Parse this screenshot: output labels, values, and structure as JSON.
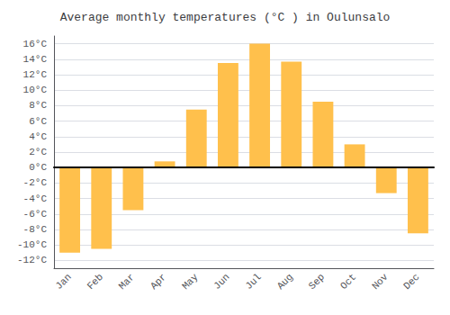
{
  "chart_data": {
    "type": "bar",
    "title": "Average monthly temperatures (°C ) in Oulunsalo",
    "categories": [
      "Jan",
      "Feb",
      "Mar",
      "Apr",
      "May",
      "Jun",
      "Jul",
      "Aug",
      "Sep",
      "Oct",
      "Nov",
      "Dec"
    ],
    "values": [
      -11,
      -10.5,
      -5.5,
      0.8,
      7.5,
      13.5,
      16.0,
      13.7,
      8.5,
      3.0,
      -3.3,
      -8.5
    ],
    "color": "#FFC04C",
    "ylim": [
      -13,
      17
    ],
    "yticks": [
      {
        "value": -12,
        "label": "-12°C"
      },
      {
        "value": -10,
        "label": "-10°C"
      },
      {
        "value": -8,
        "label": "-8°C"
      },
      {
        "value": -6,
        "label": "-6°C"
      },
      {
        "value": -4,
        "label": "-4°C"
      },
      {
        "value": -2,
        "label": "-2°C"
      },
      {
        "value": 0,
        "label": "0°C"
      },
      {
        "value": 2,
        "label": "2°C"
      },
      {
        "value": 4,
        "label": "4°C"
      },
      {
        "value": 6,
        "label": "6°C"
      },
      {
        "value": 8,
        "label": "8°C"
      },
      {
        "value": 10,
        "label": "10°C"
      },
      {
        "value": 12,
        "label": "12°C"
      },
      {
        "value": 14,
        "label": "14°C"
      },
      {
        "value": 16,
        "label": "16°C"
      }
    ],
    "grid": true
  }
}
